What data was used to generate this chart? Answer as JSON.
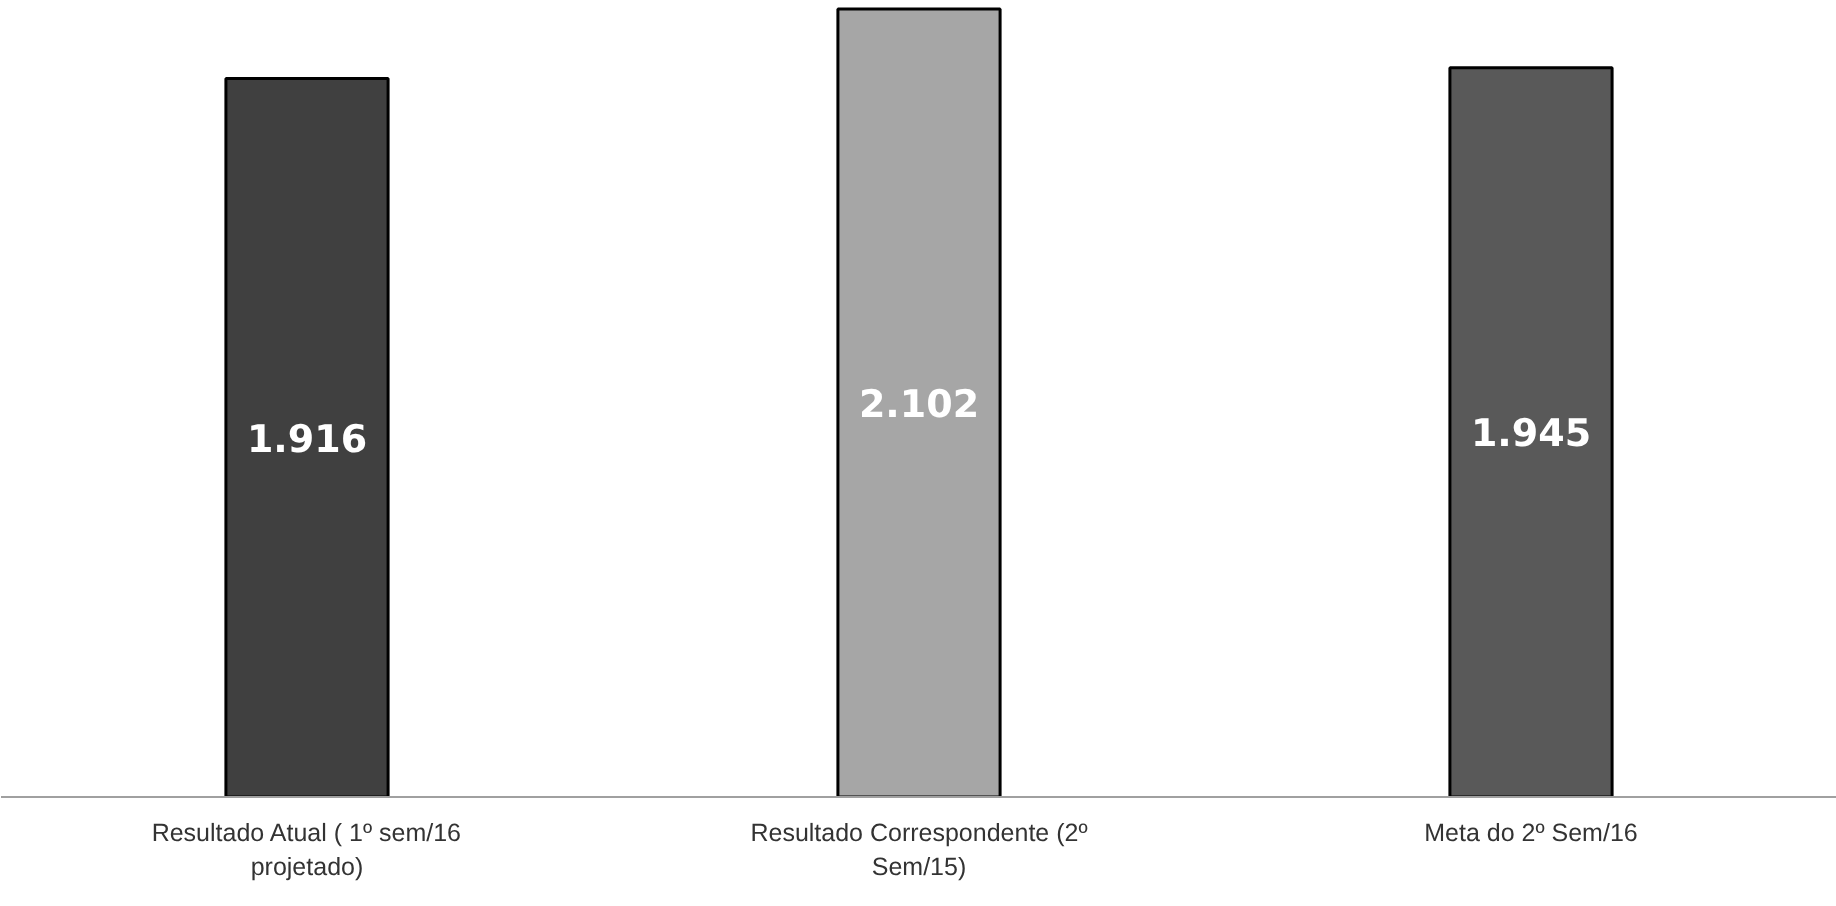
{
  "chart_data": {
    "type": "bar",
    "categories": [
      "Resultado Atual ( 1º sem/16 projetado)",
      "Resultado Correspondente (2º Sem/15)",
      "Meta do 2º Sem/16"
    ],
    "values": [
      1916,
      2102,
      1945
    ],
    "colors": [
      "#404040",
      "#a6a6a6",
      "#595959"
    ],
    "value_labels": [
      "1.916",
      "2.102",
      "1.945"
    ],
    "tick_labels": "x",
    "grid": false
  }
}
